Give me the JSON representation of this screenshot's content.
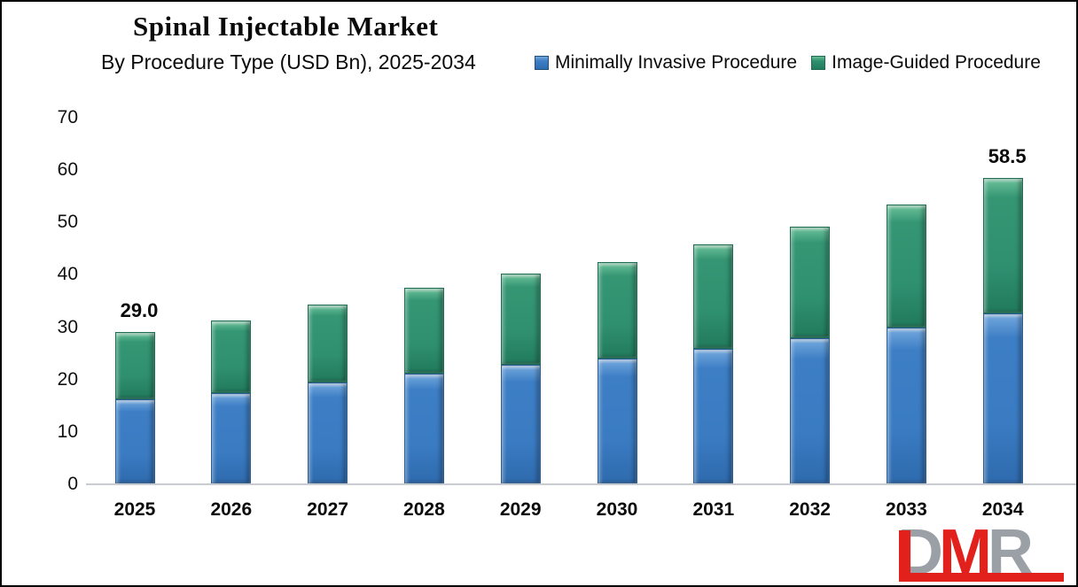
{
  "header": {
    "title": "Spinal Injectable Market",
    "subtitle": "By Procedure Type (USD Bn), 2025-2034"
  },
  "legend": {
    "items": [
      {
        "label": "Minimally Invasive Procedure",
        "color": "#3d7ec5"
      },
      {
        "label": "Image-Guided Procedure",
        "color": "#2f9070"
      }
    ]
  },
  "chart_data": {
    "type": "bar",
    "stacked": true,
    "title": "Spinal Injectable Market",
    "subtitle": "By Procedure Type (USD Bn), 2025-2034",
    "xlabel": "",
    "ylabel": "USD Bn",
    "categories": [
      "2025",
      "2026",
      "2027",
      "2028",
      "2029",
      "2030",
      "2031",
      "2032",
      "2033",
      "2034"
    ],
    "series": [
      {
        "name": "Minimally Invasive Procedure",
        "color": "#3d7ec5",
        "values": [
          16.2,
          17.4,
          19.4,
          21.2,
          22.9,
          24.0,
          25.9,
          27.9,
          30.0,
          32.7
        ]
      },
      {
        "name": "Image-Guided Procedure",
        "color": "#2f9070",
        "values": [
          12.8,
          13.9,
          14.9,
          16.3,
          17.3,
          18.4,
          19.9,
          21.3,
          23.4,
          25.8
        ]
      }
    ],
    "totals": [
      29.0,
      31.3,
      34.3,
      37.5,
      40.2,
      42.4,
      45.8,
      49.2,
      53.4,
      58.5
    ],
    "data_labels": [
      {
        "index": 0,
        "text": "29.0"
      },
      {
        "index": 9,
        "text": "58.5"
      }
    ],
    "yticks": [
      0,
      10,
      20,
      30,
      40,
      50,
      60,
      70
    ],
    "ylim": [
      0,
      70
    ],
    "grid": false,
    "legend_position": "top-right"
  },
  "logo": {
    "letters": [
      "D",
      "M",
      "R"
    ],
    "letter_colors": [
      "#9aa0a6",
      "#e2201c",
      "#9aa0a6"
    ],
    "accent_red": "#e2201c",
    "gray": "#9aa0a6"
  }
}
